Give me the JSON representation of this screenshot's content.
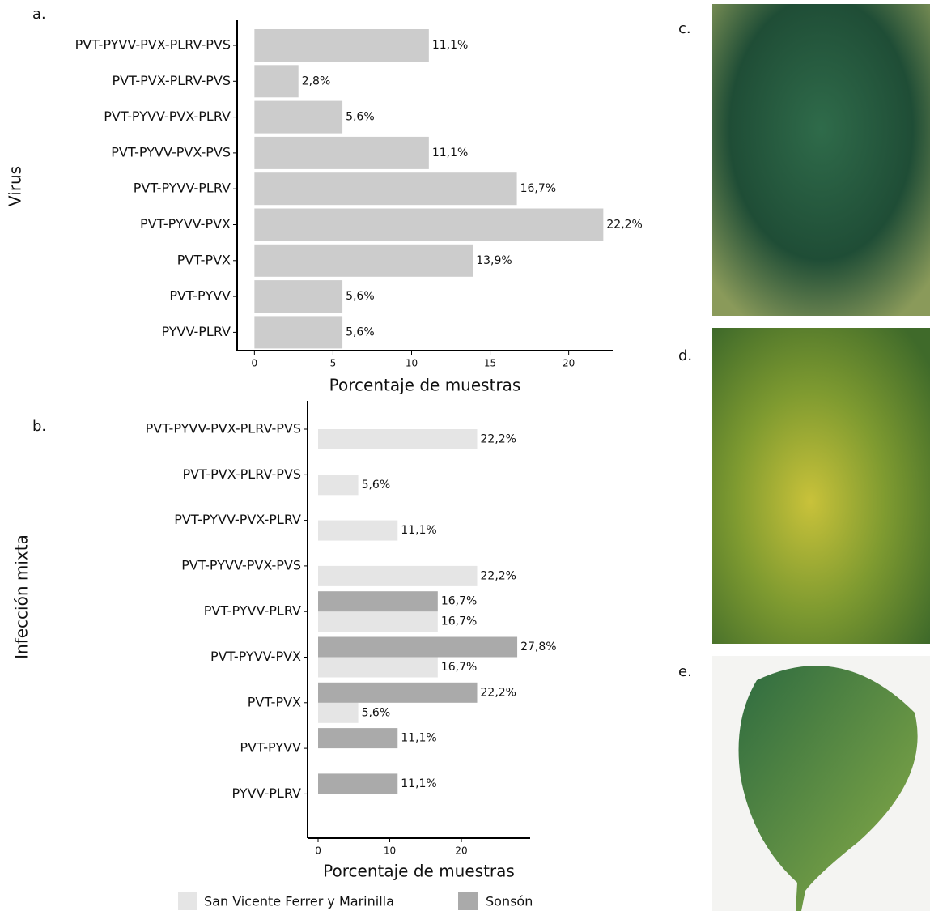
{
  "chart_data": [
    {
      "type": "bar",
      "orientation": "horizontal",
      "panel_label": "a.",
      "categories": [
        "PVT-PYVV-PVX-PLRV-PVS",
        "PVT-PVX-PLRV-PVS",
        "PVT-PYVV-PVX-PLRV",
        "PVT-PYVV-PVX-PVS",
        "PVT-PYVV-PLRV",
        "PVT-PYVV-PVX",
        "PVT-PVX",
        "PVT-PYVV",
        "PYVV-PLRV"
      ],
      "values": [
        11.1,
        2.8,
        5.6,
        11.1,
        16.7,
        22.2,
        13.9,
        5.6,
        5.6
      ],
      "value_labels": [
        "11,1%",
        "2,8%",
        "5,6%",
        "11,1%",
        "16,7%",
        "22,2%",
        "13,9%",
        "5,6%",
        "5,6%"
      ],
      "color": "#cccccc",
      "xlim": [
        -1.1,
        22.8
      ],
      "xticks": [
        0,
        5,
        10,
        15,
        20
      ],
      "xlabel": "Porcentaje de muestras",
      "ylabel": "Virus"
    },
    {
      "type": "bar",
      "orientation": "horizontal",
      "panel_label": "b.",
      "categories": [
        "PVT-PYVV-PVX-PLRV-PVS",
        "PVT-PVX-PLRV-PVS",
        "PVT-PYVV-PVX-PLRV",
        "PVT-PYVV-PVX-PVS",
        "PVT-PYVV-PLRV",
        "PVT-PYVV-PVX",
        "PVT-PVX",
        "PVT-PYVV",
        "PYVV-PLRV"
      ],
      "series": [
        {
          "name": "San Vicente Ferrer y Marinilla",
          "color": "#e5e5e5",
          "values": [
            22.2,
            5.6,
            11.1,
            22.2,
            16.7,
            16.7,
            5.6,
            null,
            null
          ],
          "value_labels": [
            "22,2%",
            "5,6%",
            "11,1%",
            "22,2%",
            "16,7%",
            "16,7%",
            "5,6%",
            null,
            null
          ]
        },
        {
          "name": "Sonsón",
          "color": "#aaaaaa",
          "values": [
            null,
            null,
            null,
            null,
            16.7,
            27.8,
            22.2,
            11.1,
            11.1
          ],
          "value_labels": [
            null,
            null,
            null,
            null,
            "16,7%",
            "27,8%",
            "22,2%",
            "11,1%",
            "11,1%"
          ]
        }
      ],
      "xlim": [
        -1.47,
        29.6
      ],
      "xticks": [
        0,
        10,
        20
      ],
      "xlabel": "Porcentaje de muestras",
      "ylabel": "Infección mixta",
      "legend": "bottom"
    }
  ],
  "photos": [
    {
      "label": "c."
    },
    {
      "label": "d."
    },
    {
      "label": "e."
    }
  ]
}
